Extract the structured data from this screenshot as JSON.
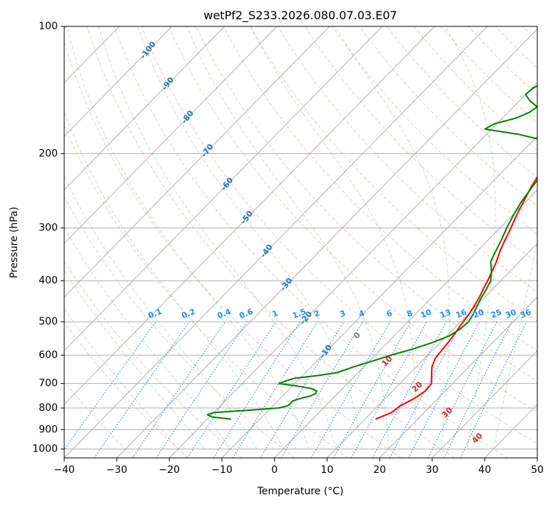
{
  "chart_data": {
    "type": "line",
    "title": "wetPf2_S233.2026.080.07.03.E07",
    "xlabel": "Temperature (°C)",
    "ylabel": "Pressure (hPa)",
    "xlim": [
      -40,
      50
    ],
    "ylim": [
      1050,
      100
    ],
    "y_scale": "log",
    "x_ticks": [
      "−40",
      "−30",
      "−20",
      "−10",
      "0",
      "10",
      "20",
      "30",
      "40",
      "50"
    ],
    "y_ticks": [
      "100",
      "200",
      "300",
      "400",
      "500",
      "600",
      "700",
      "800",
      "900",
      "1000"
    ],
    "grid": true,
    "series": [
      {
        "color": "#ff0000",
        "p": [
          850,
          820,
          790,
          760,
          730,
          700,
          670,
          640,
          610,
          580,
          550,
          520,
          500,
          480,
          460,
          440,
          420,
          400,
          380,
          360,
          340,
          320,
          300,
          280,
          260,
          240,
          225,
          210,
          200,
          195,
          190,
          185,
          180,
          175,
          170,
          165,
          160,
          155,
          150,
          145,
          140,
          135,
          130,
          125,
          120,
          115,
          110,
          105,
          100
        ],
        "t": [
          12,
          13.8,
          14.2,
          15.5,
          16.2,
          16,
          14.5,
          13,
          12,
          11.7,
          11.4,
          10.9,
          10.5,
          10.2,
          9.7,
          9.1,
          8.3,
          7.5,
          6.6,
          5.6,
          4.3,
          3.2,
          2.1,
          0.8,
          -0.4,
          -1.7,
          -2.5,
          -2.9,
          -3.0,
          -2.5,
          -1.5,
          1.0,
          4.0,
          8.5,
          10.5,
          10.7,
          10.8,
          10.4,
          9.8,
          9.1,
          8.5,
          7.5,
          6.3,
          5.1,
          4.0,
          3.4,
          3.2,
          3.3,
          3.5
        ]
      },
      {
        "color": "#008000",
        "p": [
          850,
          840,
          830,
          820,
          810,
          800,
          790,
          780,
          770,
          760,
          750,
          740,
          730,
          720,
          710,
          700,
          690,
          680,
          670,
          660,
          640,
          620,
          600,
          580,
          560,
          540,
          520,
          500,
          480,
          460,
          440,
          420,
          400,
          380,
          360,
          340,
          320,
          300,
          280,
          260,
          240,
          225,
          210,
          200,
          195,
          190,
          185,
          180,
          175,
          170,
          165,
          160,
          155,
          150,
          145,
          140,
          135,
          130,
          125,
          120,
          115,
          110,
          105,
          100
        ],
        "t": [
          -15.5,
          -19.5,
          -20.8,
          -20,
          -14,
          -8.5,
          -7.2,
          -7.1,
          -7.2,
          -6.2,
          -4.8,
          -4.2,
          -4.4,
          -5.8,
          -9.0,
          -13.0,
          -12.2,
          -11.0,
          -7.0,
          -4.0,
          -2.0,
          0.5,
          3.0,
          6.0,
          8.5,
          10.5,
          11.3,
          11.5,
          11.0,
          10.3,
          9.5,
          8.9,
          8.1,
          6.5,
          4.5,
          3.5,
          2.5,
          1.3,
          0.2,
          -0.8,
          -1.5,
          -2.0,
          -2.6,
          -3.0,
          -3.4,
          -5.0,
          -9.0,
          -14.0,
          -21.3,
          -20.5,
          -17.5,
          -16.0,
          -15.5,
          -18.0,
          -20.0,
          -19.8,
          -18.5,
          -17.0,
          -15.0,
          -13.5,
          -12.3,
          -11.4,
          -10.5,
          -9.5
        ]
      }
    ],
    "dry_adiabats_label_color": "#1f77b4",
    "dry_adiabats_labels": [
      "-100",
      "-90",
      "-80",
      "-70",
      "-60",
      "-50",
      "-40",
      "-30",
      "-20",
      "-10"
    ],
    "mixing_ratio_label_color": "#1e90ff",
    "mixing_ratio_labels": [
      "0.1",
      "0.2",
      "0.4",
      "0.6",
      "1",
      "1.5",
      "2",
      "3",
      "4",
      "6",
      "8",
      "10",
      "13",
      "16",
      "20",
      "25",
      "30",
      "36"
    ],
    "moist_adiabat_label_color": "#d62728",
    "moist_adiabat_zero_color": "#7f7f7f",
    "moist_adiabat_labels": [
      "0",
      "10",
      "20",
      "30",
      "40"
    ]
  }
}
